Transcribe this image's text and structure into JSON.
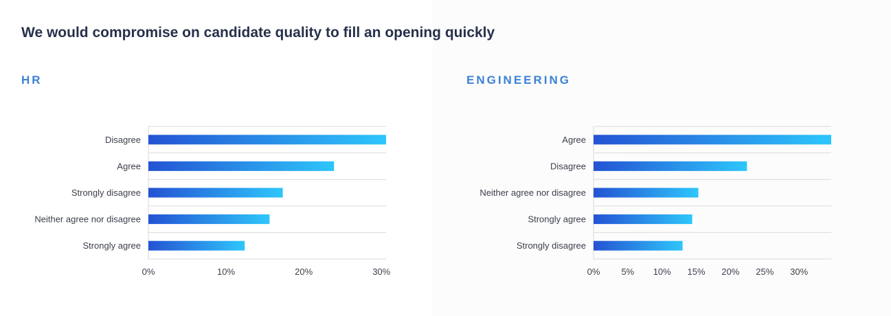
{
  "page": {
    "title": "We would compromise on candidate quality to fill an opening quickly"
  },
  "colors": {
    "bar_start": "#2453d3",
    "bar_end": "#2ec6fb",
    "panel_title": "#3b82d6",
    "title": "#26314a",
    "grid": "#d9dadd",
    "axis_text": "#3a3f4b"
  },
  "chart_data": [
    {
      "type": "bar",
      "orientation": "horizontal",
      "title": "HR",
      "categories": [
        "Disagree",
        "Agree",
        "Strongly disagree",
        "Neither agree nor disagree",
        "Strongly agree"
      ],
      "values": [
        30.6,
        23.9,
        17.3,
        15.6,
        12.4
      ],
      "xlim": [
        0,
        30.6
      ],
      "xticks": [
        0,
        10,
        20,
        30
      ],
      "tick_labels": [
        "0%",
        "10%",
        "20%",
        "30%"
      ],
      "xlabel": "",
      "ylabel": "",
      "grid": true,
      "legend": "none"
    },
    {
      "type": "bar",
      "orientation": "horizontal",
      "title": "ENGINEERING",
      "categories": [
        "Agree",
        "Disagree",
        "Neither agree nor disagree",
        "Strongly agree",
        "Strongly disagree"
      ],
      "values": [
        34.7,
        22.4,
        15.3,
        14.4,
        13.0
      ],
      "xlim": [
        0,
        34.7
      ],
      "xticks": [
        0,
        5,
        10,
        15,
        20,
        25,
        30
      ],
      "tick_labels": [
        "0%",
        "5%",
        "10%",
        "15%",
        "20%",
        "25%",
        "30%"
      ],
      "xlabel": "",
      "ylabel": "",
      "grid": true,
      "legend": "none"
    }
  ]
}
